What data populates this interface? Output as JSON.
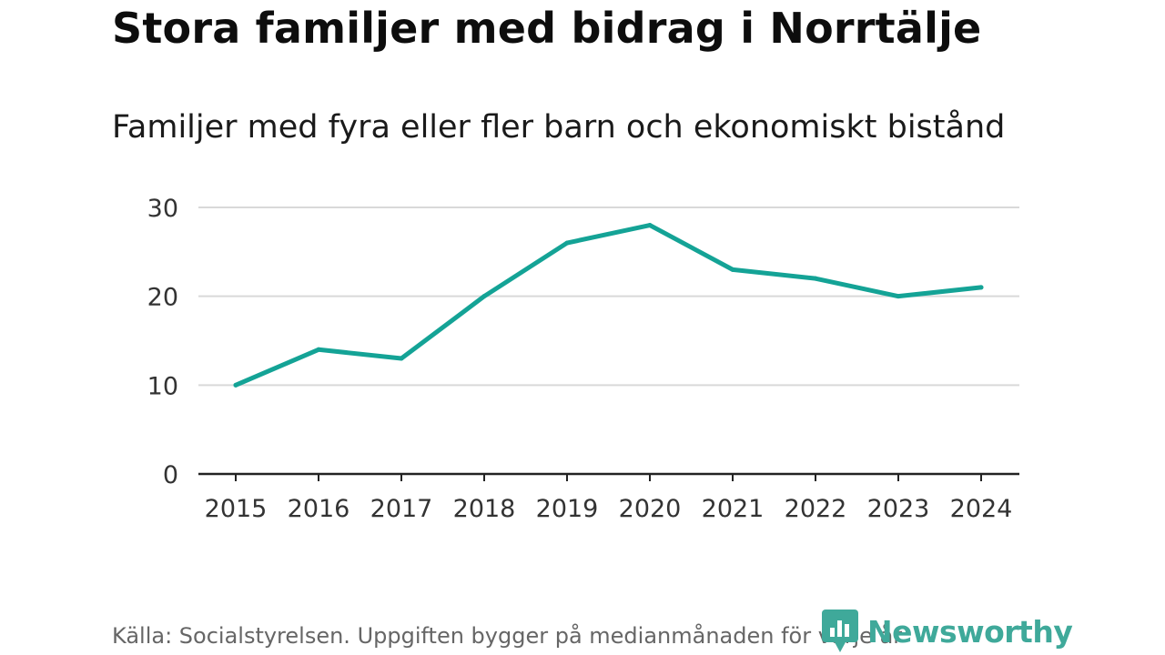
{
  "chart_data": {
    "type": "line",
    "title": "Stora familjer med bidrag i Norrtälje",
    "subtitle": "Familjer med fyra eller fler barn och ekonomiskt bistånd",
    "x": [
      "2015",
      "2016",
      "2017",
      "2018",
      "2019",
      "2020",
      "2021",
      "2022",
      "2023",
      "2024"
    ],
    "series": [
      {
        "name": "Familjer med fyra eller fler barn och ekonomiskt bistånd",
        "values": [
          10,
          14,
          13,
          20,
          26,
          28,
          23,
          22,
          20,
          21
        ]
      }
    ],
    "yticks": [
      0,
      10,
      20,
      30
    ],
    "ylim": [
      0,
      30
    ],
    "xlabel": "",
    "ylabel": "",
    "grid": true,
    "line_color": "#14a396"
  },
  "footer": {
    "source": "Källa: Socialstyrelsen. Uppgiften bygger på medianmånaden för varje år",
    "brand": "Newsworthy"
  },
  "colors": {
    "brand": "#3fa99a",
    "grid": "#d9d9d9",
    "axis": "#222222"
  }
}
